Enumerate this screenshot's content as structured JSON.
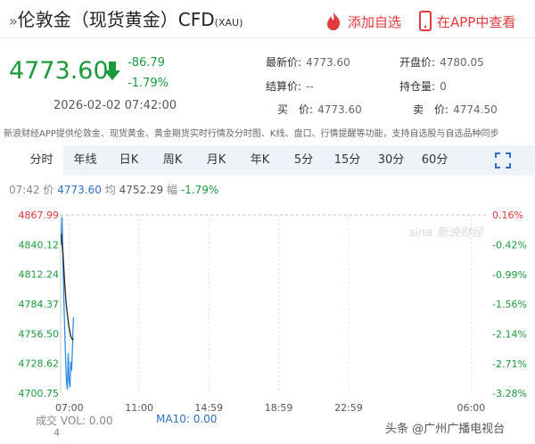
{
  "header": {
    "title": "伦敦金（现货黄金）CFD",
    "code": "(XAU)",
    "add": "添加自选",
    "app": "在APP中查看"
  },
  "quote": {
    "price": "4773.60",
    "change": "-86.79",
    "change_pct": "-1.79%",
    "time": "2026-02-02 07:42:00",
    "fields": [
      {
        "label": "最新价:",
        "value": "4773.60"
      },
      {
        "label": "开盘价:",
        "value": "4780.05"
      },
      {
        "label": "结算价:",
        "value": "--"
      },
      {
        "label": "持仓量:",
        "value": "0"
      },
      {
        "label": "买　价:",
        "value": "4773.60"
      },
      {
        "label": "卖　价:",
        "value": "4774.50"
      }
    ]
  },
  "notice": "新浪财经APP提供伦敦金、现货黄金、黄金期货实时行情及分时图、K线、盘口、行情提醒等功能，支持自选股与自选品种同步",
  "tabs": [
    "分时",
    "年线",
    "日K",
    "周K",
    "月K",
    "年K",
    "5分",
    "15分",
    "30分",
    "60分"
  ],
  "info": {
    "time": "07:42",
    "price": "4773.60",
    "avg": "4752.29",
    "range_label": "幅",
    "range": "-1.79%"
  },
  "chart_data": {
    "type": "line",
    "x": [
      392,
      395,
      398,
      401,
      404,
      407,
      410,
      413,
      416,
      419,
      422,
      425,
      428,
      431,
      434
    ],
    "series": [
      {
        "name": "价",
        "color": "#2f8fe0",
        "values": [
          4840,
          4866,
          4825,
          4790,
          4760,
          4735,
          4712,
          4704,
          4738,
          4712,
          4706,
          4730,
          4722,
          4748,
          4772
        ]
      },
      {
        "name": "均",
        "color": "#222222",
        "values": [
          4850,
          4842,
          4832,
          4818,
          4803,
          4792,
          4782,
          4775,
          4768,
          4762,
          4758,
          4754,
          4752,
          4751,
          4752
        ]
      }
    ],
    "xlim": [
      390,
      1860
    ],
    "xticks": [
      {
        "value": 420,
        "label": "07:00"
      },
      {
        "value": 660,
        "label": "11:00"
      },
      {
        "value": 899,
        "label": "14:59"
      },
      {
        "value": 1139,
        "label": "18:59"
      },
      {
        "value": 1379,
        "label": "22:59"
      },
      {
        "value": 1800,
        "label": "06:00"
      }
    ],
    "ylim": [
      4700.75,
      4867.99
    ],
    "yticks": [
      4867.99,
      4840.12,
      4812.24,
      4784.37,
      {
        "value": 4756.5,
        "label": "4756.50"
      },
      4728.62,
      4700.75
    ],
    "y2lim": [
      -3.28,
      0.16
    ],
    "y2ticks": [
      {
        "value": 0.16,
        "label": "0.16%"
      },
      {
        "value": -0.42,
        "label": "-0.42%"
      },
      {
        "value": -0.99,
        "label": "-0.99%"
      },
      {
        "value": -1.56,
        "label": "-1.56%"
      },
      {
        "value": -2.14,
        "label": "-2.14%"
      },
      {
        "value": -2.71,
        "label": "-2.71%"
      },
      {
        "value": -3.28,
        "label": "-3.28%"
      }
    ],
    "up_color": "#e4393c",
    "down_color": "#1a9a3a",
    "grid": true
  },
  "volume": {
    "label": "成交",
    "vol": "VOL: 0.00",
    "ma10": "MA10: 0.00",
    "axis": "4"
  },
  "watermark": {
    "chart": "sina 新浪财经",
    "footer": "头条 @广州广播电视台"
  }
}
